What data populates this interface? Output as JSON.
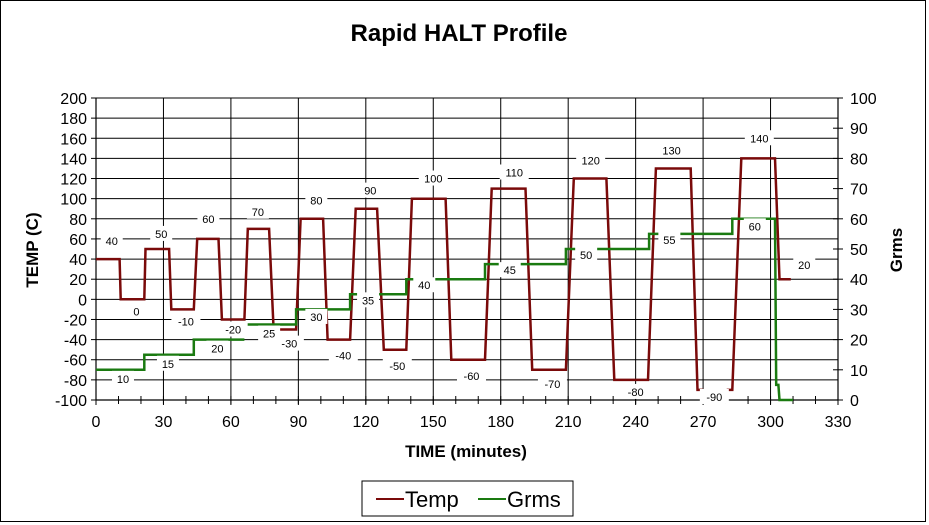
{
  "chart_data": {
    "type": "line",
    "title": "Rapid HALT Profile",
    "xlabel": "TIME (minutes)",
    "ylabel": "TEMP (C)",
    "y2label": "Grms",
    "xlim": [
      0,
      330
    ],
    "ylim": [
      -100,
      200
    ],
    "y2lim": [
      0,
      100
    ],
    "x_ticks": [
      0,
      30,
      60,
      90,
      120,
      150,
      180,
      210,
      240,
      270,
      300,
      330
    ],
    "x_minor_step": 10,
    "y_ticks": [
      -100,
      -80,
      -60,
      -40,
      -20,
      0,
      20,
      40,
      60,
      80,
      100,
      120,
      140,
      160,
      180,
      200
    ],
    "y2_ticks": [
      0,
      10,
      20,
      30,
      40,
      50,
      60,
      70,
      80,
      90,
      100
    ],
    "grid": true,
    "legend_position": "bottom",
    "series": [
      {
        "name": "Temp",
        "color": "#7a0a0a",
        "axis": "left",
        "points": [
          [
            0,
            40
          ],
          [
            10.5,
            40
          ],
          [
            11,
            0
          ],
          [
            21.5,
            0
          ],
          [
            22,
            50
          ],
          [
            32.5,
            50
          ],
          [
            33.5,
            -10
          ],
          [
            43.5,
            -10
          ],
          [
            45,
            60
          ],
          [
            54.5,
            60
          ],
          [
            56,
            -20
          ],
          [
            66,
            -20
          ],
          [
            67.5,
            70
          ],
          [
            77,
            70
          ],
          [
            79,
            -30
          ],
          [
            89,
            -30
          ],
          [
            91,
            80
          ],
          [
            101,
            80
          ],
          [
            103,
            -40
          ],
          [
            113,
            -40
          ],
          [
            115.5,
            90
          ],
          [
            125,
            90
          ],
          [
            128,
            -50
          ],
          [
            138,
            -50
          ],
          [
            140.5,
            100
          ],
          [
            155.5,
            100
          ],
          [
            158,
            -60
          ],
          [
            173,
            -60
          ],
          [
            176,
            110
          ],
          [
            191,
            110
          ],
          [
            194,
            -70
          ],
          [
            209,
            -70
          ],
          [
            212.5,
            120
          ],
          [
            227,
            120
          ],
          [
            230.5,
            -80
          ],
          [
            245.5,
            -80
          ],
          [
            249,
            130
          ],
          [
            264.5,
            130
          ],
          [
            267.5,
            -90
          ],
          [
            270,
            -90
          ]
        ],
        "points_b": [
          [
            280.5,
            -90
          ],
          [
            283,
            -90
          ],
          [
            287,
            140
          ],
          [
            302,
            140
          ],
          [
            304,
            20
          ],
          [
            309,
            20
          ]
        ]
      },
      {
        "name": "Grms",
        "color": "#1a7a10",
        "axis": "right",
        "points": [
          [
            0,
            10
          ],
          [
            21.5,
            10
          ],
          [
            21.5,
            15
          ],
          [
            43.5,
            15
          ],
          [
            43.5,
            20
          ],
          [
            66,
            20
          ]
        ],
        "points_b": [
          [
            67,
            25
          ],
          [
            89,
            25
          ],
          [
            89,
            30
          ],
          [
            113,
            30
          ],
          [
            113,
            35
          ],
          [
            138,
            35
          ],
          [
            138,
            40
          ],
          [
            173,
            40
          ],
          [
            173,
            45
          ],
          [
            209,
            45
          ],
          [
            209,
            50
          ],
          [
            246,
            50
          ],
          [
            246,
            55
          ],
          [
            283,
            55
          ],
          [
            283,
            60
          ],
          [
            302,
            60
          ],
          [
            302.5,
            5
          ],
          [
            303.5,
            5
          ],
          [
            304,
            0
          ],
          [
            310,
            0
          ]
        ]
      }
    ],
    "annotations": {
      "temp_labels": [
        {
          "text": "40",
          "t": 7,
          "v": 58
        },
        {
          "text": "0",
          "t": 18,
          "v": -12
        },
        {
          "text": "50",
          "t": 29,
          "v": 65
        },
        {
          "text": "-10",
          "t": 40,
          "v": -22
        },
        {
          "text": "60",
          "t": 50,
          "v": 80
        },
        {
          "text": "-20",
          "t": 61,
          "v": -30
        },
        {
          "text": "70",
          "t": 72,
          "v": 87
        },
        {
          "text": "-30",
          "t": 86,
          "v": -44
        },
        {
          "text": "80",
          "t": 98,
          "v": 98
        },
        {
          "text": "-40",
          "t": 110,
          "v": -56
        },
        {
          "text": "90",
          "t": 122,
          "v": 108
        },
        {
          "text": "-50",
          "t": 134,
          "v": -66
        },
        {
          "text": "100",
          "t": 150,
          "v": 120
        },
        {
          "text": "-60",
          "t": 167,
          "v": -76
        },
        {
          "text": "110",
          "t": 186,
          "v": 126
        },
        {
          "text": "-70",
          "t": 203,
          "v": -84
        },
        {
          "text": "120",
          "t": 220,
          "v": 138
        },
        {
          "text": "-80",
          "t": 240,
          "v": -92
        },
        {
          "text": "130",
          "t": 256,
          "v": 148
        },
        {
          "text": "-90",
          "t": 275,
          "v": -97
        },
        {
          "text": "140",
          "t": 295,
          "v": 160
        },
        {
          "text": "20",
          "t": 315,
          "v": 34
        }
      ],
      "grms_labels": [
        {
          "text": "10",
          "t": 12,
          "v": 7
        },
        {
          "text": "15",
          "t": 32,
          "v": 12
        },
        {
          "text": "20",
          "t": 54,
          "v": 17
        },
        {
          "text": "25",
          "t": 77,
          "v": 22
        },
        {
          "text": "30",
          "t": 98,
          "v": 27.5
        },
        {
          "text": "35",
          "t": 121,
          "v": 33
        },
        {
          "text": "40",
          "t": 146,
          "v": 38
        },
        {
          "text": "45",
          "t": 184,
          "v": 43
        },
        {
          "text": "50",
          "t": 218,
          "v": 48
        },
        {
          "text": "55",
          "t": 255,
          "v": 53
        },
        {
          "text": "60",
          "t": 293,
          "v": 57.5
        }
      ]
    }
  },
  "legend": {
    "items": [
      {
        "label": "Temp",
        "color": "#7a0a0a"
      },
      {
        "label": "Grms",
        "color": "#1a7a10"
      }
    ]
  }
}
